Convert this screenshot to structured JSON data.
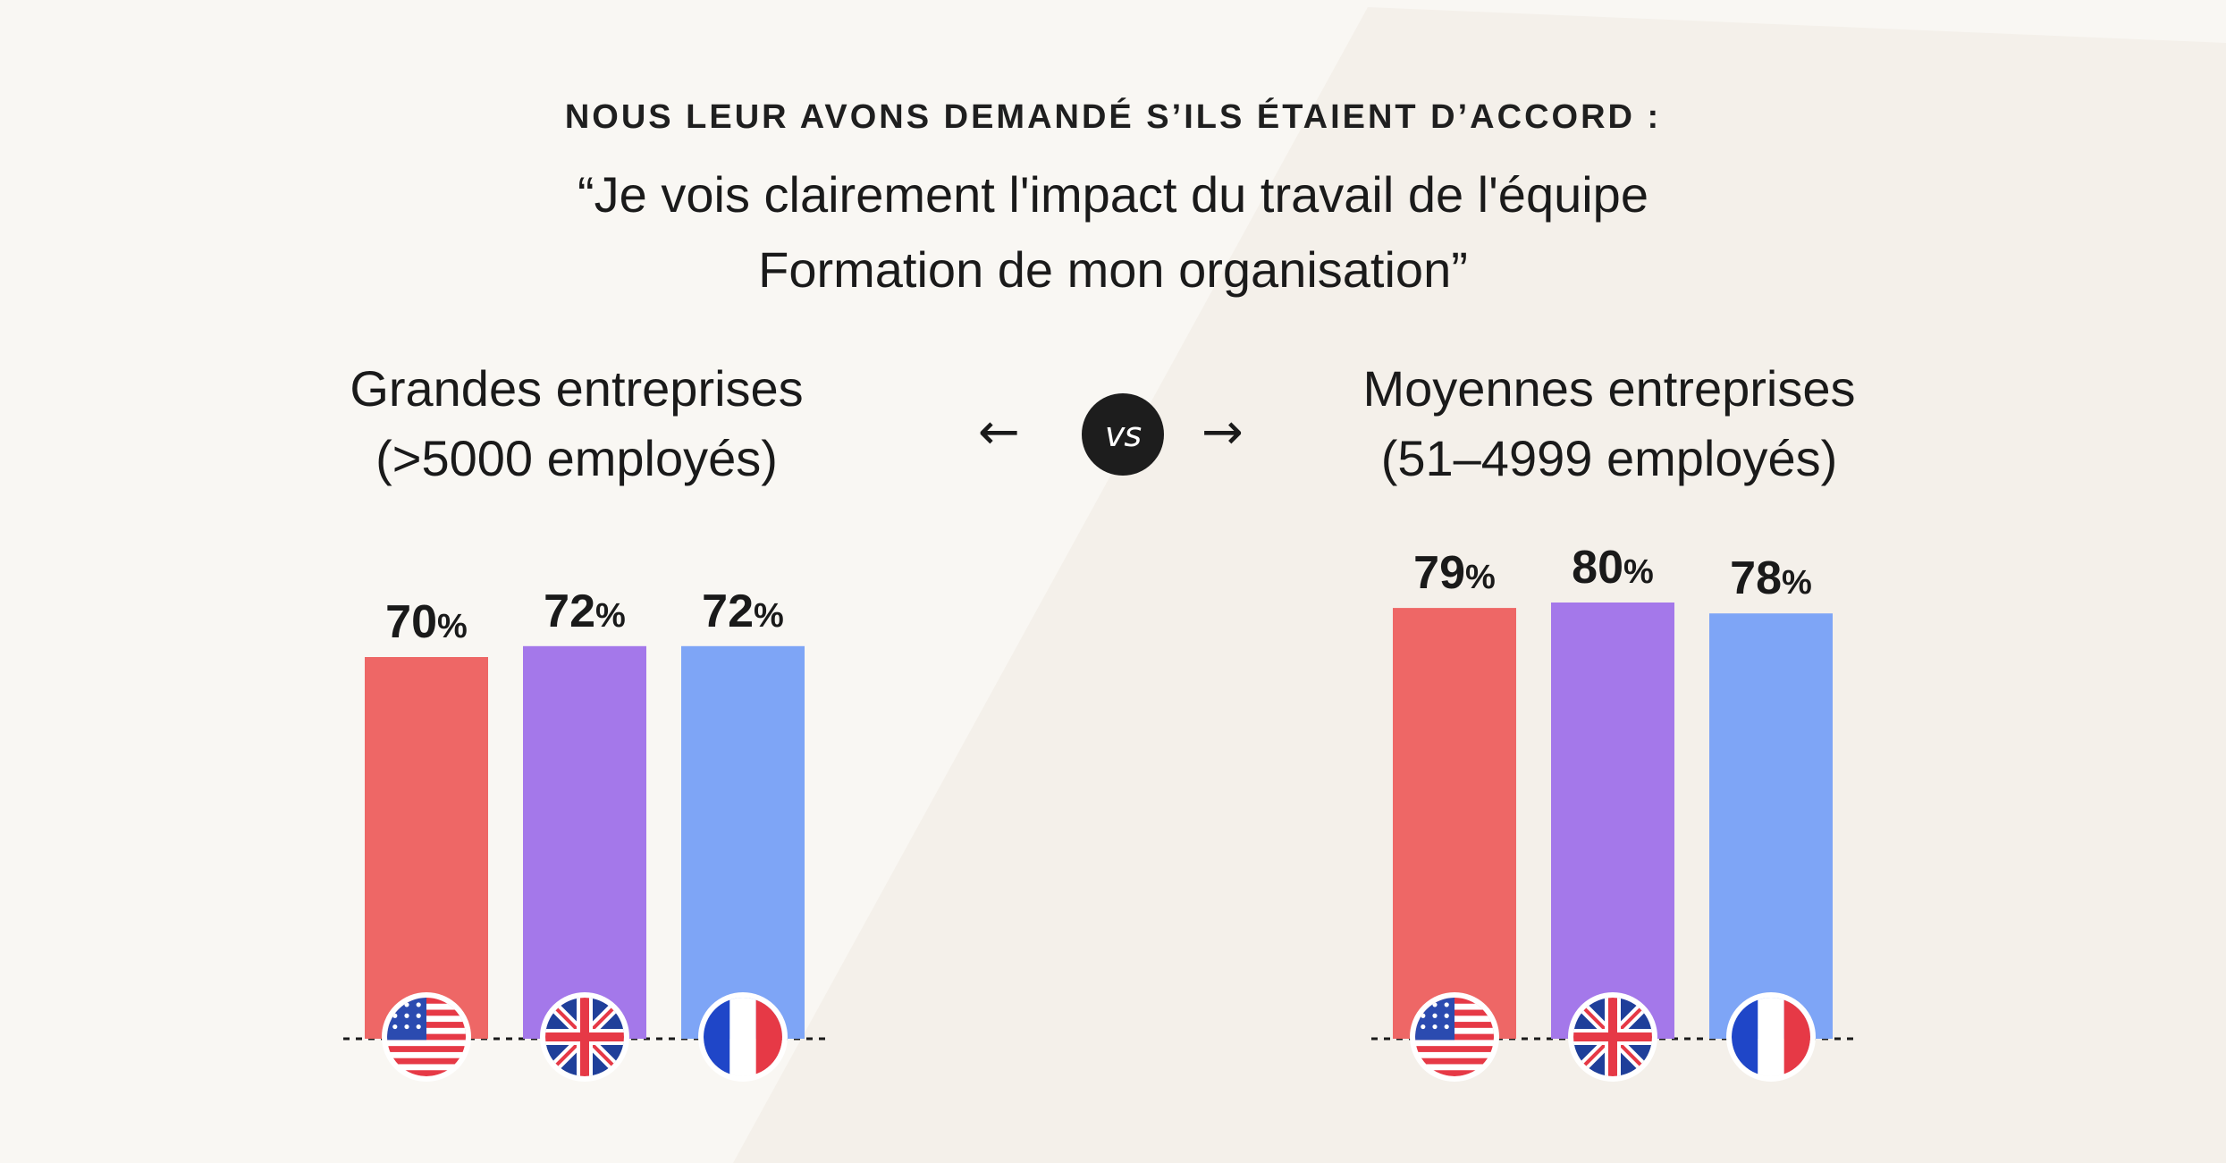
{
  "header": {
    "kicker": "NOUS LEUR AVONS DEMANDÉ  S’ILS ÉTAIENT D’ACCORD :",
    "quote_line1": "“Je vois clairement l'impact du travail de l'équipe",
    "quote_line2": "Formation de mon organisation”"
  },
  "comparison": {
    "vs_label": "vs",
    "arrow_left": "←",
    "arrow_right": "→"
  },
  "colors": {
    "background": "#f9f7f3",
    "background_band": "#f4f0ea",
    "us": "#ee6766",
    "uk": "#a478ea",
    "fr": "#7ea5f6"
  },
  "chart_data": [
    {
      "type": "bar",
      "title_line1": "Grandes entreprises",
      "title_line2": "(>5000 employés)",
      "categories": [
        "us-flag-icon",
        "uk-flag-icon",
        "fr-flag-icon"
      ],
      "values": [
        70,
        72,
        72
      ],
      "unit": "%",
      "ylim": [
        0,
        100
      ],
      "grid": false
    },
    {
      "type": "bar",
      "title_line1": "Moyennes entreprises",
      "title_line2": "(51–4999 employés)",
      "categories": [
        "us-flag-icon",
        "uk-flag-icon",
        "fr-flag-icon"
      ],
      "values": [
        79,
        80,
        78
      ],
      "unit": "%",
      "ylim": [
        0,
        100
      ],
      "grid": false
    }
  ]
}
